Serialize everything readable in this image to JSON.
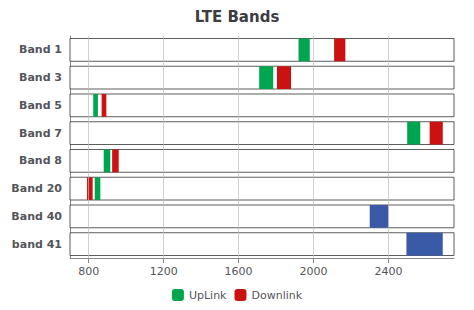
{
  "chart_data": {
    "type": "range_bar",
    "title": "LTE Bands",
    "categories": [
      "Band 1",
      "Band 3",
      "Band 5",
      "Band 7",
      "Band 8",
      "Band 20",
      "Band 40",
      "band 41"
    ],
    "orientation": "horizontal",
    "series": [
      {
        "name": "UpLink",
        "color": "#00A550",
        "values": [
          [
            1920,
            1980
          ],
          [
            1710,
            1785
          ],
          [
            824,
            849
          ],
          [
            2500,
            2570
          ],
          [
            880,
            915
          ],
          [
            832,
            862
          ],
          null,
          null
        ]
      },
      {
        "name": "Downlink",
        "color": "#CC1111",
        "values": [
          [
            2110,
            2170
          ],
          [
            1805,
            1880
          ],
          [
            869,
            894
          ],
          [
            2620,
            2690
          ],
          [
            925,
            960
          ],
          [
            791,
            821
          ],
          null,
          null
        ]
      },
      {
        "color": "#3A5AA8",
        "values": [
          null,
          null,
          null,
          null,
          null,
          null,
          [
            2300,
            2400
          ],
          [
            2496,
            2690
          ]
        ]
      }
    ],
    "xlim": [
      700,
      2750
    ],
    "xticks": [
      800,
      1200,
      1600,
      2000,
      2400
    ],
    "grid": true,
    "legend": "bottom"
  }
}
